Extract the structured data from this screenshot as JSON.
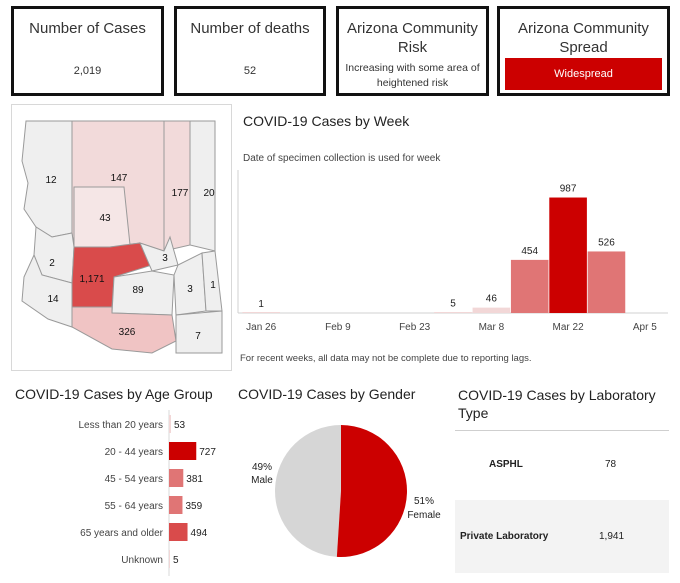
{
  "kpis": {
    "cases": {
      "title": "Number of Cases",
      "value": "2,019"
    },
    "deaths": {
      "title": "Number of deaths",
      "value": "52"
    },
    "risk": {
      "title_line1": "Arizona Community",
      "title_line2": "Risk",
      "value_line1": "Increasing with some area of",
      "value_line2": "heightened risk"
    },
    "spread": {
      "title_line1": "Arizona Community",
      "title_line2": "Spread",
      "value": "Widespread"
    }
  },
  "map": {
    "county_counts": [
      "12",
      "147",
      "177",
      "20",
      "43",
      "2",
      "1,171",
      "3",
      "89",
      "14",
      "3",
      "1",
      "326",
      "7"
    ]
  },
  "weekly": {
    "title": "COVID-19 Cases by Week",
    "subtitle": "Date of specimen collection is used for week",
    "note": "For recent weeks, all data may not be complete due to reporting lags."
  },
  "age": {
    "title": "COVID-19 Cases by Age Group"
  },
  "gender": {
    "title": "COVID-19 Cases by Gender",
    "male_pct": "49%",
    "male_label": "Male",
    "female_pct": "51%",
    "female_label": "Female"
  },
  "lab": {
    "title_line1": "COVID-19 Cases by Laboratory",
    "title_line2": "Type",
    "rows": [
      {
        "type": "ASPHL",
        "count": "78"
      },
      {
        "type": "Private Laboratory",
        "count": "1,941"
      }
    ]
  },
  "colors": {
    "accent": "#cc0000",
    "mid": "#e07575",
    "light": "#f2d7d7",
    "grey": "#d6d6d6"
  },
  "chart_data": [
    {
      "type": "bar",
      "title": "COVID-19 Cases by Week",
      "categories": [
        "Jan 26",
        "Feb 2",
        "Feb 9",
        "Feb 16",
        "Feb 23",
        "Mar 1",
        "Mar 8",
        "Mar 15",
        "Mar 22",
        "Mar 29",
        "Apr 5"
      ],
      "values": [
        1,
        0,
        0,
        0,
        0,
        5,
        46,
        454,
        987,
        526,
        0
      ],
      "tick_labels": [
        "Jan 26",
        "Feb 9",
        "Feb 23",
        "Mar 8",
        "Mar 22",
        "Apr 5"
      ],
      "label_categories": [
        "Jan 26",
        "Mar 1",
        "Mar 8",
        "Mar 15",
        "Mar 22",
        "Mar 29"
      ],
      "xlabel": "",
      "ylabel": "",
      "ylim": [
        0,
        1000
      ]
    },
    {
      "type": "bar",
      "title": "COVID-19 Cases by Age Group",
      "categories": [
        "Less than 20 years",
        "20 - 44 years",
        "45 - 54 years",
        "55 - 64 years",
        "65 years and older",
        "Unknown"
      ],
      "values": [
        53,
        727,
        381,
        359,
        494,
        5
      ],
      "ylim": [
        0,
        800
      ]
    },
    {
      "type": "pie",
      "title": "COVID-19 Cases by Gender",
      "categories": [
        "Male",
        "Female"
      ],
      "values": [
        49,
        51
      ]
    }
  ]
}
